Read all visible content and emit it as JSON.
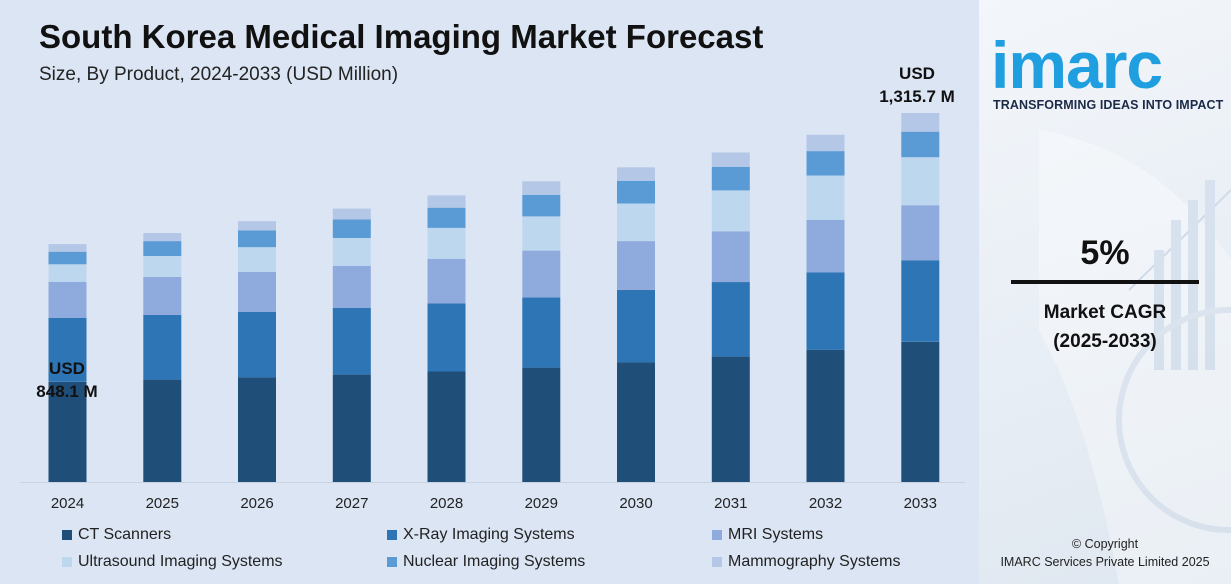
{
  "title": "South Korea Medical Imaging Market Forecast",
  "subtitle": "Size, By Product, 2024-2033 (USD Million)",
  "callouts": {
    "start": {
      "currency": "USD",
      "value": "848.1 M"
    },
    "end": {
      "currency": "USD",
      "value": "1,315.7 M"
    }
  },
  "colors": {
    "panel_bg": "#dbe5f3",
    "ct": "#1f4e79",
    "xray": "#2e75b6",
    "mri": "#8faadc",
    "ultrasound": "#bdd7ee",
    "nuclear": "#5b9bd5",
    "mammography": "#b4c7e7",
    "logo": "#1f9fe0"
  },
  "chart_data": {
    "type": "bar",
    "stacked": true,
    "categories": [
      "2024",
      "2025",
      "2026",
      "2027",
      "2028",
      "2029",
      "2030",
      "2031",
      "2032",
      "2033"
    ],
    "totals": [
      848.1,
      888,
      930,
      975,
      1022,
      1072,
      1122,
      1175,
      1238,
      1315.7
    ],
    "series": [
      {
        "name": "CT Scanners",
        "color": "#1f4e79",
        "values": [
          357,
          365,
          373,
          383,
          394,
          408,
          427,
          447,
          471,
          500
        ]
      },
      {
        "name": "X-Ray Imaging Systems",
        "color": "#2e75b6",
        "values": [
          228,
          231,
          234,
          238,
          243,
          250,
          258,
          266,
          276,
          290
        ]
      },
      {
        "name": "MRI Systems",
        "color": "#8faadc",
        "values": [
          129,
          135,
          142,
          150,
          159,
          167,
          174,
          181,
          188,
          197
        ]
      },
      {
        "name": "Ultrasound Imaging Systems",
        "color": "#bdd7ee",
        "values": [
          62,
          75,
          88,
          99,
          110,
          122,
          134,
          146,
          158,
          171
        ]
      },
      {
        "name": "Nuclear Imaging Systems",
        "color": "#5b9bd5",
        "values": [
          45,
          53,
          60,
          66,
          72,
          77,
          81,
          84,
          87,
          91
        ]
      },
      {
        "name": "Mammography Systems",
        "color": "#b4c7e7",
        "values": [
          27.1,
          29,
          33,
          39,
          44,
          48,
          48,
          51,
          58,
          66.7
        ]
      }
    ],
    "legend_position": "bottom",
    "grid": false,
    "y_axis_visible": false
  },
  "brand": {
    "logo_text": "imarc",
    "tagline": "TRANSFORMING IDEAS INTO IMPACT"
  },
  "cagr": {
    "value": "5%",
    "label_line1": "Market CAGR",
    "label_line2": "(2025-2033)"
  },
  "copyright": {
    "line1": "© Copyright",
    "line2": "IMARC Services Private Limited 2025"
  }
}
